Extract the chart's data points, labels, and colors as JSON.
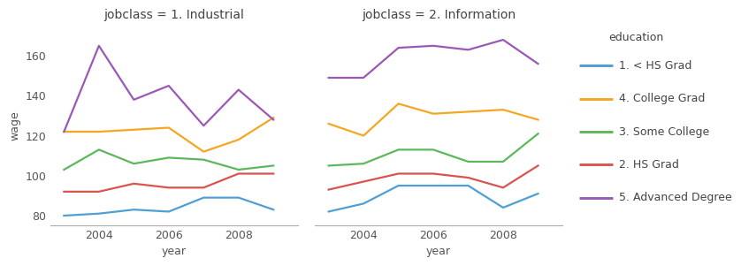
{
  "title_left": "jobclass = 1. Industrial",
  "title_right": "jobclass = 2. Information",
  "xlabel": "year",
  "ylabel": "wage",
  "legend_title": "education",
  "years": [
    2003,
    2004,
    2005,
    2006,
    2007,
    2008,
    2009
  ],
  "series": [
    {
      "label": "1. < HS Grad",
      "color": "#4e9fd4",
      "industrial": [
        80,
        81,
        83,
        82,
        89,
        89,
        83
      ],
      "information": [
        82,
        86,
        95,
        95,
        95,
        84,
        91
      ]
    },
    {
      "label": "4. College Grad",
      "color": "#f5a623",
      "industrial": [
        122,
        122,
        123,
        124,
        112,
        118,
        129
      ],
      "information": [
        126,
        120,
        136,
        131,
        132,
        133,
        128
      ]
    },
    {
      "label": "3. Some College",
      "color": "#5cb85c",
      "industrial": [
        103,
        113,
        106,
        109,
        108,
        103,
        105
      ],
      "information": [
        105,
        106,
        113,
        113,
        107,
        107,
        121
      ]
    },
    {
      "label": "2. HS Grad",
      "color": "#d9534f",
      "industrial": [
        92,
        92,
        96,
        94,
        94,
        101,
        101
      ],
      "information": [
        93,
        97,
        101,
        101,
        99,
        94,
        105
      ]
    },
    {
      "label": "5. Advanced Degree",
      "color": "#9b59b6",
      "industrial": [
        122,
        165,
        138,
        145,
        125,
        143,
        128
      ],
      "information": [
        149,
        149,
        164,
        165,
        163,
        168,
        156
      ]
    }
  ],
  "ylim": [
    75,
    175
  ],
  "yticks": [
    80,
    100,
    120,
    140,
    160
  ],
  "xticks": [
    2004,
    2006,
    2008
  ],
  "background_color": "#ffffff",
  "spine_color": "#aaaaaa",
  "title_fontsize": 10,
  "axis_label_fontsize": 9,
  "legend_fontsize": 9,
  "tick_fontsize": 9,
  "linewidth": 1.6
}
